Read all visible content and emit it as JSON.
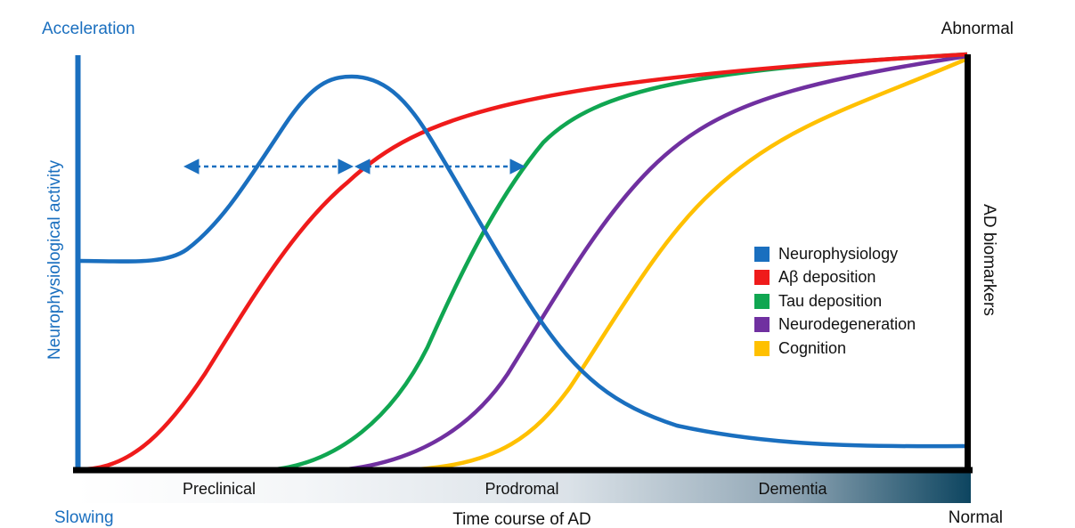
{
  "labels": {
    "top_left": "Acceleration",
    "bottom_left": "Slowing",
    "top_right": "Abnormal",
    "bottom_right": "Normal",
    "left_axis": "Neurophysiological activity",
    "right_axis": "AD biomarkers",
    "x_axis": "Time course of AD"
  },
  "stages": [
    "Preclinical",
    "Prodromal",
    "Dementia"
  ],
  "legend": [
    {
      "label": "Neurophysiology",
      "color": "#1a6fbf"
    },
    {
      "label": "Aβ deposition",
      "color": "#ef1b1b"
    },
    {
      "label": "Tau deposition",
      "color": "#10a651"
    },
    {
      "label": "Neurodegeneration",
      "color": "#7030a0"
    },
    {
      "label": "Cognition",
      "color": "#ffc000"
    }
  ],
  "colors": {
    "left_axis": "#1a6fbf",
    "frame": "#000000",
    "label_blue": "#1a6fbf",
    "stage_gradient_start": "#ffffff",
    "stage_gradient_end": "#0d4560"
  }
}
